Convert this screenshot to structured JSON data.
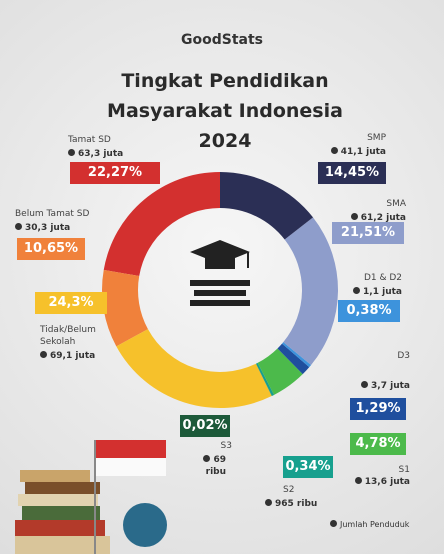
{
  "chart_data": {
    "type": "donut",
    "brand": "GoodStats",
    "title": "Tingkat Pendidikan Masyarakat Indonesia 2024",
    "categories": [
      "SMP",
      "SMA",
      "D1 & D2",
      "D3",
      "S1",
      "S2",
      "S3",
      "Tidak/Belum Sekolah",
      "Belum Tamat SD",
      "Tamat SD"
    ],
    "values": [
      14.45,
      21.51,
      0.38,
      1.29,
      4.78,
      0.34,
      0.02,
      24.3,
      10.65,
      22.27
    ],
    "value_labels": [
      "14,45%",
      "21,51%",
      "0,38%",
      "1,29%",
      "4,78%",
      "0,34%",
      "0,02%",
      "24,3%",
      "10,65%",
      "22,27%"
    ],
    "counts": [
      "41,1 juta",
      "61,2 juta",
      "1,1 juta",
      "3,7 juta",
      "13,6 juta",
      "965 ribu",
      "69 ribu",
      "69,1 juta",
      "30,3 juta",
      "63,3 juta"
    ],
    "colors": [
      "#2b2f55",
      "#8e9dcb",
      "#3d93dc",
      "#1f4f9e",
      "#4cba4b",
      "#17a08e",
      "#1d5a3a",
      "#f6c12b",
      "#f0813b",
      "#d3302f"
    ],
    "legend": "Jumlah Penduduk"
  }
}
